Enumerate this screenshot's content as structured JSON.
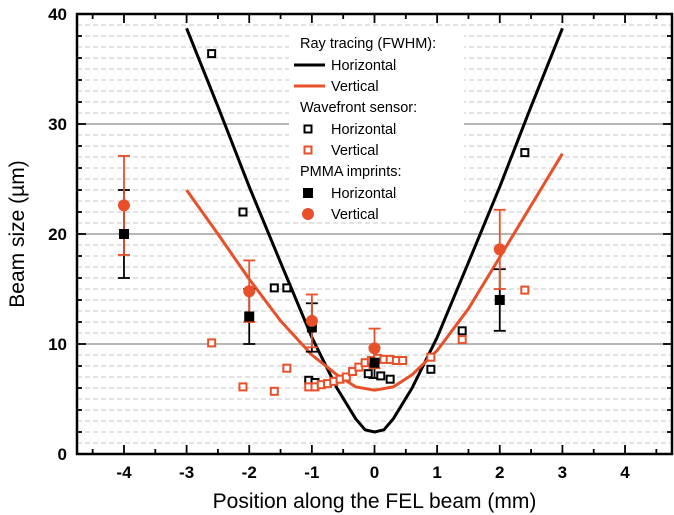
{
  "chart_data": {
    "type": "line",
    "xlabel": "Position along the FEL beam (mm)",
    "ylabel": "Beam size (µm)",
    "xlim": [
      -4.75,
      4.75
    ],
    "ylim": [
      0,
      40
    ],
    "x_ticks": [
      -4,
      -3,
      -2,
      -1,
      0,
      1,
      2,
      3,
      4
    ],
    "y_ticks": [
      0,
      10,
      20,
      30,
      40
    ],
    "grid": "horizontal dashed minor lines every 1 µm, solid gray major lines every 10 µm",
    "legend": {
      "placement": "top-center",
      "groups": [
        {
          "heading": "Ray tracing (FWHM):",
          "entries": [
            {
              "label": "Horizontal",
              "series": "rt_h"
            },
            {
              "label": "Vertical",
              "series": "rt_v"
            }
          ]
        },
        {
          "heading": "Wavefront sensor:",
          "entries": [
            {
              "label": "Horizontal",
              "series": "wf_h"
            },
            {
              "label": "Vertical",
              "series": "wf_v"
            }
          ]
        },
        {
          "heading": "PMMA imprints:",
          "entries": [
            {
              "label": "Horizontal",
              "series": "pm_h"
            },
            {
              "label": "Vertical",
              "series": "pm_v"
            }
          ]
        }
      ]
    },
    "series": [
      {
        "id": "rt_h",
        "group": "Ray tracing (FWHM)",
        "name": "Horizontal",
        "kind": "line",
        "color": "#000000",
        "x": [
          -3,
          -2.5,
          -2,
          -1.5,
          -1,
          -0.6,
          -0.3,
          -0.15,
          0,
          0.15,
          0.3,
          0.6,
          1,
          1.5,
          2,
          2.5,
          3
        ],
        "y": [
          38.7,
          31.6,
          24.3,
          17.4,
          10.6,
          6.0,
          3.2,
          2.2,
          2.0,
          2.2,
          3.2,
          6.0,
          10.6,
          17.4,
          24.3,
          31.6,
          38.7
        ]
      },
      {
        "id": "rt_v",
        "group": "Ray tracing (FWHM)",
        "name": "Vertical",
        "kind": "line",
        "color": "#e8502a",
        "x": [
          -3,
          -2.5,
          -2,
          -1.5,
          -1,
          -0.6,
          -0.3,
          0,
          0.3,
          0.6,
          1,
          1.5,
          2,
          2.5,
          3
        ],
        "y": [
          24.0,
          20.0,
          15.9,
          12.1,
          9.0,
          7.2,
          6.1,
          5.8,
          6.1,
          7.2,
          9.4,
          13.2,
          17.9,
          22.6,
          27.3
        ]
      },
      {
        "id": "wf_h",
        "group": "Wavefront sensor",
        "name": "Horizontal",
        "kind": "open-square",
        "color": "#000000",
        "x": [
          -2.6,
          -2.1,
          -1.6,
          -1.4,
          -1.05,
          -0.95,
          -0.1,
          0.1,
          0.25,
          0.9,
          1.4,
          2.4
        ],
        "y": [
          36.4,
          22.0,
          15.1,
          15.1,
          6.7,
          6.5,
          7.3,
          7.1,
          6.8,
          7.7,
          11.2,
          27.4
        ]
      },
      {
        "id": "wf_v",
        "group": "Wavefront sensor",
        "name": "Vertical",
        "kind": "open-square",
        "color": "#e8502a",
        "x": [
          -2.6,
          -2.1,
          -1.6,
          -1.4,
          -1.05,
          -0.95,
          -0.85,
          -0.75,
          -0.65,
          -0.55,
          -0.45,
          -0.35,
          -0.25,
          -0.15,
          -0.05,
          0.05,
          0.15,
          0.25,
          0.35,
          0.45,
          0.9,
          1.4,
          2.4
        ],
        "y": [
          10.1,
          6.1,
          5.7,
          7.8,
          6.1,
          6.1,
          6.3,
          6.4,
          6.6,
          6.8,
          7.0,
          7.5,
          7.9,
          8.3,
          8.5,
          8.7,
          8.6,
          8.6,
          8.5,
          8.5,
          8.8,
          10.4,
          14.9
        ]
      },
      {
        "id": "pm_h",
        "group": "PMMA imprints",
        "name": "Horizontal",
        "kind": "filled-square",
        "color": "#000000",
        "x": [
          -4,
          -2,
          -1,
          0,
          2
        ],
        "y": [
          20.0,
          12.5,
          11.5,
          8.3,
          14.0
        ],
        "err": [
          4.0,
          2.5,
          2.2,
          1.4,
          2.8
        ]
      },
      {
        "id": "pm_v",
        "group": "PMMA imprints",
        "name": "Vertical",
        "kind": "filled-circle",
        "color": "#e8502a",
        "x": [
          -4,
          -2,
          -1,
          0,
          2
        ],
        "y": [
          22.6,
          14.8,
          12.1,
          9.6,
          18.6
        ],
        "err": [
          4.5,
          2.8,
          2.4,
          1.8,
          3.6
        ]
      }
    ]
  }
}
